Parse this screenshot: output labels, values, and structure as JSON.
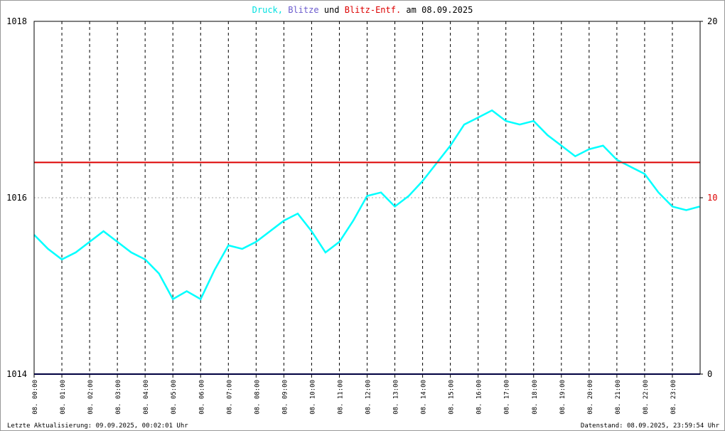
{
  "chart_data": {
    "type": "line",
    "title_segments": [
      {
        "text": "Druck,",
        "color": "#00e0e0"
      },
      {
        "text": "Blitze",
        "color": "#6a5acd"
      },
      {
        "text": "und",
        "color": "#000000"
      },
      {
        "text": "Blitz-Entf.",
        "color": "#dd0000"
      },
      {
        "text": "am 08.09.2025",
        "color": "#000000"
      }
    ],
    "xlim": [
      0,
      24
    ],
    "xticks": [
      {
        "value": 0,
        "label": "08. 00:00"
      },
      {
        "value": 1,
        "label": "08. 01:00"
      },
      {
        "value": 2,
        "label": "08. 02:00"
      },
      {
        "value": 3,
        "label": "08. 03:00"
      },
      {
        "value": 4,
        "label": "08. 04:00"
      },
      {
        "value": 5,
        "label": "08. 05:00"
      },
      {
        "value": 6,
        "label": "08. 06:00"
      },
      {
        "value": 7,
        "label": "08. 07:00"
      },
      {
        "value": 8,
        "label": "08. 08:00"
      },
      {
        "value": 9,
        "label": "08. 09:00"
      },
      {
        "value": 10,
        "label": "08. 10:00"
      },
      {
        "value": 11,
        "label": "08. 11:00"
      },
      {
        "value": 12,
        "label": "08. 12:00"
      },
      {
        "value": 13,
        "label": "08. 13:00"
      },
      {
        "value": 14,
        "label": "08. 14:00"
      },
      {
        "value": 15,
        "label": "08. 15:00"
      },
      {
        "value": 16,
        "label": "08. 16:00"
      },
      {
        "value": 17,
        "label": "08. 17:00"
      },
      {
        "value": 18,
        "label": "08. 18:00"
      },
      {
        "value": 19,
        "label": "08. 19:00"
      },
      {
        "value": 20,
        "label": "08. 20:00"
      },
      {
        "value": 21,
        "label": "08. 21:00"
      },
      {
        "value": 22,
        "label": "08. 22:00"
      },
      {
        "value": 23,
        "label": "08. 23:00"
      }
    ],
    "ylim": [
      1014,
      1018
    ],
    "yticks": [
      1014,
      1016,
      1018
    ],
    "y2lim": [
      0,
      20
    ],
    "y2ticks": [
      0,
      10,
      20
    ],
    "grid": true,
    "series": [
      {
        "color": "#00ffff",
        "x": [
          0,
          0.5,
          1,
          1.5,
          2,
          2.5,
          3,
          3.5,
          4,
          4.5,
          5,
          5.5,
          6,
          6.5,
          7,
          7.5,
          8,
          8.5,
          9,
          9.5,
          10,
          10.5,
          11,
          11.5,
          12,
          12.5,
          13,
          13.5,
          14,
          14.5,
          15,
          15.5,
          16,
          16.5,
          17,
          17.5,
          18,
          18.5,
          19,
          19.5,
          20,
          20.5,
          21,
          21.5,
          22,
          22.5,
          23,
          23.5,
          23.98
        ],
        "values": [
          1015.58,
          1015.42,
          1015.3,
          1015.38,
          1015.5,
          1015.62,
          1015.5,
          1015.38,
          1015.3,
          1015.14,
          1014.85,
          1014.94,
          1014.85,
          1015.18,
          1015.46,
          1015.42,
          1015.5,
          1015.62,
          1015.74,
          1015.82,
          1015.62,
          1015.38,
          1015.5,
          1015.74,
          1016.02,
          1016.06,
          1015.9,
          1016.02,
          1016.19,
          1016.39,
          1016.59,
          1016.83,
          1016.91,
          1016.99,
          1016.87,
          1016.83,
          1016.87,
          1016.71,
          1016.59,
          1016.47,
          1016.55,
          1016.59,
          1016.43,
          1016.35,
          1016.27,
          1016.06,
          1015.9,
          1015.86,
          1015.9
        ]
      },
      {
        "color": "#000080",
        "axis": "y2",
        "x": [
          0,
          24
        ],
        "values": [
          0,
          0
        ]
      },
      {
        "color": "#dd0000",
        "axis": "y2",
        "x": [
          0,
          24
        ],
        "values": [
          12,
          12
        ]
      }
    ],
    "footer_left": "Letzte Aktualisierung: 09.09.2025, 00:02:01 Uhr",
    "footer_right": "Datenstand: 08.09.2025, 23:59:54 Uhr"
  }
}
